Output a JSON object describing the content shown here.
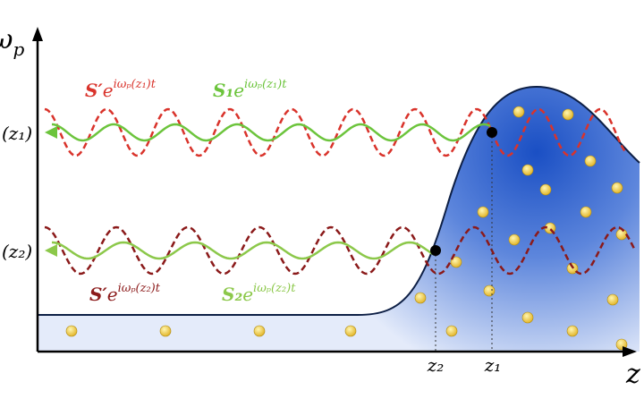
{
  "axes": {
    "y_label": {
      "symbol": "ω",
      "sub": "p"
    },
    "x_label": "z"
  },
  "levels": [
    {
      "label": "(z₁)"
    },
    {
      "label": "(z₂)"
    }
  ],
  "waves": [
    {
      "name": "S′",
      "base": "e",
      "sup": "iωₚ(z₁)t"
    },
    {
      "name": "S₁",
      "base": "e",
      "sup": "iωₚ(z₁)t"
    },
    {
      "name": "S′",
      "base": "e",
      "sup": "iωₚ(z₂)t"
    },
    {
      "name": "S₂",
      "base": "e",
      "sup": "iωₚ(z₂)t"
    }
  ],
  "positions": [
    "z₂",
    "z₁"
  ]
}
